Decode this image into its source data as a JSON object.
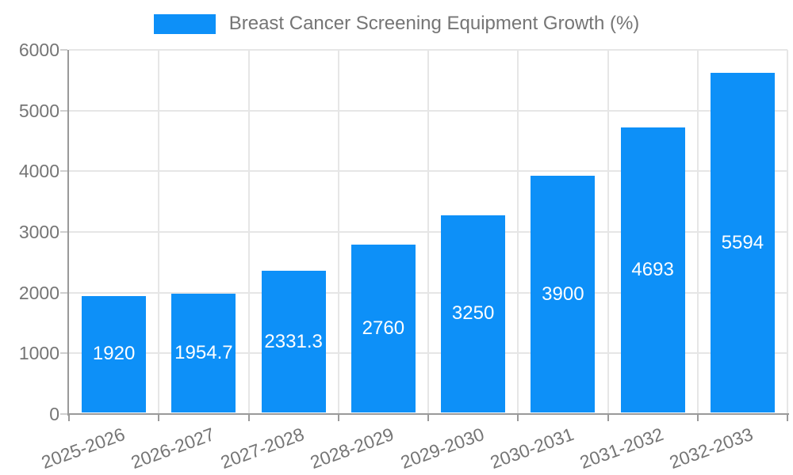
{
  "legend": {
    "label": "Breast Cancer Screening Equipment Growth (%)",
    "swatch_color": "#0D90F8"
  },
  "chart_data": {
    "type": "bar",
    "title": "Breast Cancer Screening Equipment Growth (%)",
    "categories": [
      "2025-2026",
      "2026-2027",
      "2027-2028",
      "2028-2029",
      "2029-2030",
      "2030-2031",
      "2031-2032",
      "2032-2033"
    ],
    "values": [
      1920,
      1954.7,
      2331.3,
      2760,
      3250,
      3900,
      4693,
      5594
    ],
    "value_labels": [
      "1920",
      "1954.7",
      "2331.3",
      "2760",
      "3250",
      "3900",
      "4693",
      "5594"
    ],
    "xlabel": "",
    "ylabel": "",
    "ylim": [
      0,
      6000
    ],
    "yticks": [
      0,
      1000,
      2000,
      3000,
      4000,
      5000,
      6000
    ],
    "grid": true,
    "legend_position": "top-center",
    "x_label_rotation_deg": -20,
    "colors": {
      "bar": "#0D90F8",
      "value_label": "#ffffff",
      "axis_line": "#9a9a9a",
      "gridline": "#e6e6e6",
      "tick_label": "#757575",
      "legend_text": "#757575",
      "background": "#ffffff"
    }
  }
}
